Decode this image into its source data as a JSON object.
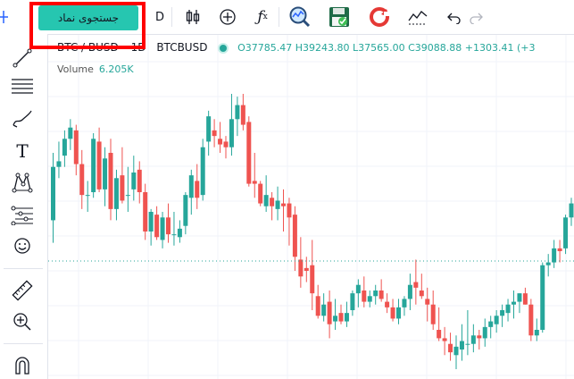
{
  "toolbar": {
    "search_label": "جستجوی نماد",
    "interval": "D",
    "icons": [
      "crosshair-icon",
      "candles-icon",
      "add-indicator-icon",
      "function-icon",
      "magnify-chart-icon",
      "save-icon",
      "refresh-icon",
      "compare-icon",
      "undo-icon",
      "redo-icon"
    ]
  },
  "legend": {
    "symbol": "BTC / BUSD",
    "interval": "1D",
    "ticker": "BTCBUSD",
    "ohlc": "O37785.47  H39243.80  L37565.00  C39088.88  +1303.41 (+3"
  },
  "volume": {
    "label": "Volume",
    "value": "6.205K"
  },
  "sidebar": {
    "icons": [
      "trend-line-icon",
      "horizontal-lines-icon",
      "brush-icon",
      "text-icon",
      "pattern-icon",
      "fib-icon",
      "emoji-icon",
      "ruler-icon",
      "zoom-in-icon",
      "magnet-icon"
    ]
  },
  "colors": {
    "up": "#26a69a",
    "down": "#ef5350",
    "accent": "#26c6b0",
    "highlight": "#ff0000"
  },
  "chart_data": {
    "type": "candlestick",
    "candles": [
      [
        2.0,
        4.4,
        1.2,
        3.9
      ],
      [
        3.9,
        4.8,
        3.5,
        4.1
      ],
      [
        4.3,
        5.2,
        3.9,
        4.9
      ],
      [
        4.9,
        5.6,
        4.5,
        5.3
      ],
      [
        5.2,
        5.4,
        3.6,
        4.0
      ],
      [
        4.0,
        4.5,
        2.4,
        2.9
      ],
      [
        2.9,
        3.4,
        2.3,
        2.9
      ],
      [
        3.0,
        5.1,
        2.8,
        4.9
      ],
      [
        4.8,
        5.3,
        3.0,
        3.1
      ],
      [
        3.1,
        4.6,
        2.5,
        4.2
      ],
      [
        4.4,
        4.9,
        2.0,
        2.4
      ],
      [
        2.4,
        3.8,
        2.0,
        3.5
      ],
      [
        3.6,
        4.6,
        2.6,
        2.7
      ],
      [
        2.9,
        3.9,
        2.3,
        2.9
      ],
      [
        3.1,
        4.3,
        2.7,
        3.7
      ],
      [
        3.8,
        4.1,
        2.6,
        3.0
      ],
      [
        3.0,
        3.3,
        1.3,
        1.6
      ],
      [
        1.6,
        2.4,
        1.1,
        2.3
      ],
      [
        2.2,
        2.5,
        1.3,
        1.4
      ],
      [
        1.3,
        2.3,
        1.0,
        2.1
      ],
      [
        2.1,
        2.6,
        1.2,
        1.5
      ],
      [
        1.5,
        2.3,
        1.1,
        1.5
      ],
      [
        1.4,
        2.0,
        1.2,
        1.7
      ],
      [
        1.8,
        3.0,
        1.5,
        2.9
      ],
      [
        2.8,
        3.8,
        2.2,
        3.6
      ],
      [
        3.4,
        4.0,
        2.4,
        2.8
      ],
      [
        2.9,
        4.9,
        2.7,
        4.6
      ],
      [
        4.8,
        5.9,
        4.3,
        5.7
      ],
      [
        5.2,
        5.6,
        4.6,
        5.0
      ],
      [
        4.9,
        5.5,
        4.4,
        4.7
      ],
      [
        4.8,
        5.0,
        4.2,
        4.6
      ],
      [
        4.6,
        6.5,
        4.3,
        5.6
      ],
      [
        5.6,
        6.4,
        5.0,
        6.1
      ],
      [
        6.1,
        6.5,
        5.2,
        5.4
      ],
      [
        5.5,
        5.7,
        3.2,
        3.3
      ],
      [
        3.4,
        4.4,
        2.8,
        3.3
      ],
      [
        3.3,
        3.4,
        2.5,
        2.6
      ],
      [
        2.5,
        3.6,
        2.3,
        2.9
      ],
      [
        2.8,
        3.0,
        2.0,
        2.5
      ],
      [
        2.4,
        3.2,
        2.0,
        2.7
      ],
      [
        2.6,
        3.1,
        1.6,
        2.5
      ],
      [
        2.6,
        2.8,
        1.1,
        2.1
      ],
      [
        2.2,
        2.5,
        0.2,
        0.7
      ],
      [
        0.6,
        1.4,
        -0.4,
        0.0
      ],
      [
        0.3,
        0.7,
        -0.2,
        0.2
      ],
      [
        0.4,
        1.3,
        -1.2,
        -0.6
      ],
      [
        -0.7,
        -0.3,
        -1.5,
        -1.4
      ],
      [
        -1.4,
        -0.6,
        -1.6,
        -1.0
      ],
      [
        -0.9,
        -0.5,
        -2.2,
        -1.7
      ],
      [
        -1.6,
        -0.8,
        -1.9,
        -1.4
      ],
      [
        -1.3,
        -1.0,
        -1.7,
        -1.6
      ],
      [
        -1.6,
        -0.9,
        -1.8,
        -1.3
      ],
      [
        -1.2,
        -0.5,
        -1.4,
        -0.6
      ],
      [
        -0.6,
        -0.1,
        -1.1,
        -0.3
      ],
      [
        -0.5,
        0.0,
        -1.1,
        -0.9
      ],
      [
        -0.9,
        -0.5,
        -1.1,
        -0.7
      ],
      [
        -0.7,
        -0.3,
        -1.0,
        -0.5
      ],
      [
        -0.5,
        -0.1,
        -0.9,
        -0.8
      ],
      [
        -0.9,
        -0.6,
        -1.3,
        -1.1
      ],
      [
        -1.1,
        -0.8,
        -1.6,
        -1.5
      ],
      [
        -1.5,
        -0.8,
        -1.7,
        -1.1
      ],
      [
        -1.1,
        -0.7,
        -1.4,
        -0.8
      ],
      [
        -0.8,
        0.1,
        -1.2,
        -0.3
      ],
      [
        -0.2,
        0.6,
        -1.0,
        -0.4
      ],
      [
        -0.5,
        0.1,
        -0.8,
        -0.7
      ],
      [
        -0.8,
        -0.4,
        -1.6,
        -1.0
      ],
      [
        -1.0,
        -0.5,
        -1.9,
        -1.7
      ],
      [
        -1.9,
        -1.1,
        -2.3,
        -2.2
      ],
      [
        -2.2,
        -1.8,
        -2.8,
        -2.3
      ],
      [
        -2.4,
        -2.0,
        -3.0,
        -2.7
      ],
      [
        -2.8,
        -2.1,
        -3.3,
        -2.5
      ],
      [
        -2.6,
        -1.7,
        -3.0,
        -2.3
      ],
      [
        -2.4,
        -1.2,
        -2.8,
        -2.4
      ],
      [
        -2.4,
        -1.7,
        -2.7,
        -2.1
      ],
      [
        -2.1,
        -1.9,
        -2.6,
        -2.2
      ],
      [
        -2.2,
        -1.5,
        -2.5,
        -1.8
      ],
      [
        -1.8,
        -1.4,
        -2.2,
        -1.6
      ],
      [
        -1.7,
        -1.2,
        -2.0,
        -1.4
      ],
      [
        -1.4,
        -1.0,
        -1.8,
        -1.2
      ],
      [
        -1.3,
        -0.8,
        -1.6,
        -1.0
      ],
      [
        -1.0,
        -0.5,
        -1.5,
        -0.9
      ],
      [
        -0.9,
        -0.6,
        -1.3,
        -0.6
      ],
      [
        -0.6,
        -0.4,
        -1.0,
        -1.0
      ],
      [
        -1.0,
        -0.8,
        -2.3,
        -2.1
      ],
      [
        -2.1,
        -1.5,
        -2.3,
        -1.9
      ],
      [
        -1.9,
        0.5,
        -2.0,
        0.4
      ],
      [
        0.4,
        0.8,
        0.0,
        0.5
      ],
      [
        0.5,
        1.3,
        0.3,
        1.0
      ],
      [
        1.0,
        1.3,
        0.5,
        0.9
      ],
      [
        1.0,
        2.2,
        0.8,
        2.1
      ],
      [
        2.1,
        2.8,
        1.8,
        2.6
      ],
      [
        2.6,
        3.6,
        2.3,
        3.3
      ],
      [
        3.3,
        3.8,
        2.9,
        3.0
      ]
    ]
  }
}
